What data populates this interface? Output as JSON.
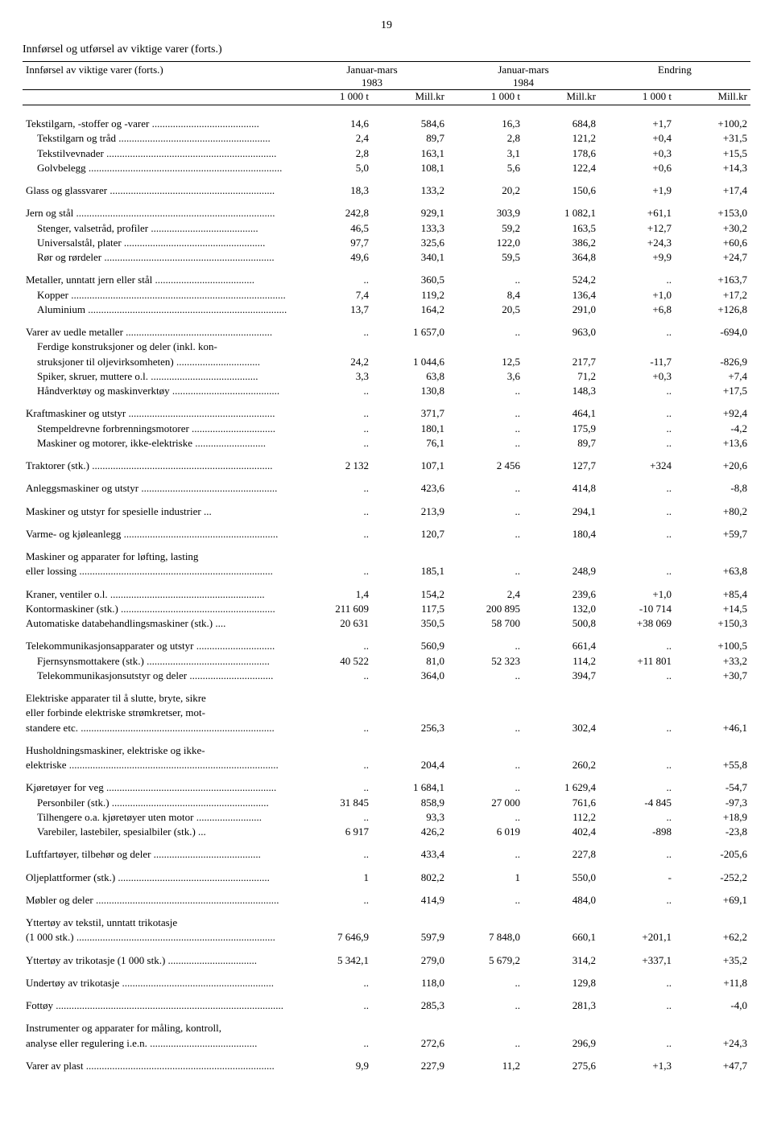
{
  "page_number": "19",
  "title": "Innførsel og utførsel av viktige varer (forts.)",
  "row_header_label": "Innførsel av viktige varer (forts.)",
  "period_headers": [
    "Januar-mars",
    "Januar-mars",
    "Endring"
  ],
  "year_headers": [
    "1983",
    "1984",
    ""
  ],
  "unit_headers": [
    "1 000 t",
    "Mill.kr",
    "1 000 t",
    "Mill.kr",
    "1 000 t",
    "Mill.kr"
  ],
  "rows": [
    {
      "label": "Tekstilgarn, -stoffer og -varer",
      "indent": 0,
      "gapBefore": true,
      "vals": [
        "14,6",
        "584,6",
        "16,3",
        "684,8",
        "+1,7",
        "+100,2"
      ]
    },
    {
      "label": "Tekstilgarn og tråd",
      "indent": 1,
      "vals": [
        "2,4",
        "89,7",
        "2,8",
        "121,2",
        "+0,4",
        "+31,5"
      ]
    },
    {
      "label": "Tekstilvevnader",
      "indent": 1,
      "vals": [
        "2,8",
        "163,1",
        "3,1",
        "178,6",
        "+0,3",
        "+15,5"
      ]
    },
    {
      "label": "Golvbelegg",
      "indent": 1,
      "vals": [
        "5,0",
        "108,1",
        "5,6",
        "122,4",
        "+0,6",
        "+14,3"
      ]
    },
    {
      "label": "Glass og glassvarer",
      "indent": 0,
      "gapBefore": true,
      "vals": [
        "18,3",
        "133,2",
        "20,2",
        "150,6",
        "+1,9",
        "+17,4"
      ]
    },
    {
      "label": "Jern og stål",
      "indent": 0,
      "gapBefore": true,
      "vals": [
        "242,8",
        "929,1",
        "303,9",
        "1 082,1",
        "+61,1",
        "+153,0"
      ]
    },
    {
      "label": "Stenger, valsetråd, profiler",
      "indent": 1,
      "vals": [
        "46,5",
        "133,3",
        "59,2",
        "163,5",
        "+12,7",
        "+30,2"
      ]
    },
    {
      "label": "Universalstål, plater",
      "indent": 1,
      "vals": [
        "97,7",
        "325,6",
        "122,0",
        "386,2",
        "+24,3",
        "+60,6"
      ]
    },
    {
      "label": "Rør og rørdeler",
      "indent": 1,
      "vals": [
        "49,6",
        "340,1",
        "59,5",
        "364,8",
        "+9,9",
        "+24,7"
      ]
    },
    {
      "label": "Metaller, unntatt jern eller stål",
      "indent": 0,
      "gapBefore": true,
      "vals": [
        "..",
        "360,5",
        "..",
        "524,2",
        "..",
        "+163,7"
      ]
    },
    {
      "label": "Kopper",
      "indent": 1,
      "vals": [
        "7,4",
        "119,2",
        "8,4",
        "136,4",
        "+1,0",
        "+17,2"
      ]
    },
    {
      "label": "Aluminium",
      "indent": 1,
      "vals": [
        "13,7",
        "164,2",
        "20,5",
        "291,0",
        "+6,8",
        "+126,8"
      ]
    },
    {
      "label": "Varer av uedle metaller",
      "indent": 0,
      "gapBefore": true,
      "vals": [
        "..",
        "1 657,0",
        "..",
        "963,0",
        "..",
        "-694,0"
      ]
    },
    {
      "label": "Ferdige konstruksjoner og deler (inkl. kon-",
      "noLeaders": true,
      "indent": 1,
      "vals": [
        "",
        "",
        "",
        "",
        "",
        ""
      ]
    },
    {
      "label": "struksjoner til oljevirksomheten)",
      "indent": 1,
      "vals": [
        "24,2",
        "1 044,6",
        "12,5",
        "217,7",
        "-11,7",
        "-826,9"
      ]
    },
    {
      "label": "Spiker, skruer, muttere o.l.",
      "indent": 1,
      "vals": [
        "3,3",
        "63,8",
        "3,6",
        "71,2",
        "+0,3",
        "+7,4"
      ]
    },
    {
      "label": "Håndverktøy og maskinverktøy",
      "indent": 1,
      "vals": [
        "..",
        "130,8",
        "..",
        "148,3",
        "..",
        "+17,5"
      ]
    },
    {
      "label": "Kraftmaskiner og utstyr",
      "indent": 0,
      "gapBefore": true,
      "vals": [
        "..",
        "371,7",
        "..",
        "464,1",
        "..",
        "+92,4"
      ]
    },
    {
      "label": "Stempeldrevne forbrenningsmotorer",
      "indent": 1,
      "vals": [
        "..",
        "180,1",
        "..",
        "175,9",
        "..",
        "-4,2"
      ]
    },
    {
      "label": "Maskiner og motorer, ikke-elektriske",
      "indent": 1,
      "vals": [
        "..",
        "76,1",
        "..",
        "89,7",
        "..",
        "+13,6"
      ]
    },
    {
      "label": "Traktorer (stk.)",
      "indent": 0,
      "gapBefore": true,
      "vals": [
        "2 132",
        "107,1",
        "2 456",
        "127,7",
        "+324",
        "+20,6"
      ]
    },
    {
      "label": "Anleggsmaskiner og utstyr",
      "indent": 0,
      "gapBefore": true,
      "vals": [
        "..",
        "423,6",
        "..",
        "414,8",
        "..",
        "-8,8"
      ]
    },
    {
      "label": "Maskiner og utstyr for spesielle industrier",
      "indent": 0,
      "gapBefore": true,
      "leadersText": "...",
      "vals": [
        "..",
        "213,9",
        "..",
        "294,1",
        "..",
        "+80,2"
      ]
    },
    {
      "label": "Varme- og kjøleanlegg",
      "indent": 0,
      "gapBefore": true,
      "vals": [
        "..",
        "120,7",
        "..",
        "180,4",
        "..",
        "+59,7"
      ]
    },
    {
      "label": "Maskiner og apparater for løfting, lasting",
      "noLeaders": true,
      "indent": 0,
      "gapBefore": true,
      "vals": [
        "",
        "",
        "",
        "",
        "",
        ""
      ]
    },
    {
      "label": "eller lossing",
      "indent": 0,
      "vals": [
        "..",
        "185,1",
        "..",
        "248,9",
        "..",
        "+63,8"
      ]
    },
    {
      "label": "Kraner, ventiler o.l.",
      "indent": 0,
      "gapBefore": true,
      "vals": [
        "1,4",
        "154,2",
        "2,4",
        "239,6",
        "+1,0",
        "+85,4"
      ]
    },
    {
      "label": "Kontormaskiner (stk.)",
      "indent": 0,
      "vals": [
        "211 609",
        "117,5",
        "200 895",
        "132,0",
        "-10 714",
        "+14,5"
      ]
    },
    {
      "label": "Automatiske databehandlingsmaskiner (stk.)",
      "indent": 0,
      "leadersText": "....",
      "vals": [
        "20 631",
        "350,5",
        "58 700",
        "500,8",
        "+38 069",
        "+150,3"
      ]
    },
    {
      "label": "Telekommunikasjonsapparater og utstyr",
      "indent": 0,
      "gapBefore": true,
      "vals": [
        "..",
        "560,9",
        "..",
        "661,4",
        "..",
        "+100,5"
      ]
    },
    {
      "label": "Fjernsynsmottakere (stk.)",
      "indent": 1,
      "vals": [
        "40 522",
        "81,0",
        "52 323",
        "114,2",
        "+11 801",
        "+33,2"
      ]
    },
    {
      "label": "Telekommunikasjonsutstyr og deler",
      "indent": 1,
      "vals": [
        "..",
        "364,0",
        "..",
        "394,7",
        "..",
        "+30,7"
      ]
    },
    {
      "label": "Elektriske apparater til å slutte, bryte, sikre",
      "noLeaders": true,
      "indent": 0,
      "gapBefore": true,
      "vals": [
        "",
        "",
        "",
        "",
        "",
        ""
      ]
    },
    {
      "label": "eller forbinde elektriske strømkretser, mot-",
      "noLeaders": true,
      "indent": 0,
      "vals": [
        "",
        "",
        "",
        "",
        "",
        ""
      ]
    },
    {
      "label": "standere etc.",
      "indent": 0,
      "vals": [
        "..",
        "256,3",
        "..",
        "302,4",
        "..",
        "+46,1"
      ]
    },
    {
      "label": "Husholdningsmaskiner, elektriske og ikke-",
      "noLeaders": true,
      "indent": 0,
      "gapBefore": true,
      "vals": [
        "",
        "",
        "",
        "",
        "",
        ""
      ]
    },
    {
      "label": "elektriske",
      "indent": 0,
      "vals": [
        "..",
        "204,4",
        "..",
        "260,2",
        "..",
        "+55,8"
      ]
    },
    {
      "label": "Kjøretøyer for veg",
      "indent": 0,
      "gapBefore": true,
      "vals": [
        "..",
        "1 684,1",
        "..",
        "1 629,4",
        "..",
        "-54,7"
      ]
    },
    {
      "label": "Personbiler (stk.)",
      "indent": 1,
      "vals": [
        "31 845",
        "858,9",
        "27 000",
        "761,6",
        "-4 845",
        "-97,3"
      ]
    },
    {
      "label": "Tilhengere o.a. kjøretøyer uten motor",
      "indent": 1,
      "vals": [
        "..",
        "93,3",
        "..",
        "112,2",
        "..",
        "+18,9"
      ]
    },
    {
      "label": "Varebiler, lastebiler, spesialbiler (stk.)",
      "indent": 1,
      "leadersText": "...",
      "vals": [
        "6 917",
        "426,2",
        "6 019",
        "402,4",
        "-898",
        "-23,8"
      ]
    },
    {
      "label": "Luftfartøyer, tilbehør og deler",
      "indent": 0,
      "gapBefore": true,
      "vals": [
        "..",
        "433,4",
        "..",
        "227,8",
        "..",
        "-205,6"
      ]
    },
    {
      "label": "Oljeplattformer (stk.)",
      "indent": 0,
      "gapBefore": true,
      "vals": [
        "1",
        "802,2",
        "1",
        "550,0",
        "-",
        "-252,2"
      ]
    },
    {
      "label": "Møbler og deler",
      "indent": 0,
      "gapBefore": true,
      "vals": [
        "..",
        "414,9",
        "..",
        "484,0",
        "..",
        "+69,1"
      ]
    },
    {
      "label": "Yttertøy av tekstil, unntatt trikotasje",
      "noLeaders": true,
      "indent": 0,
      "gapBefore": true,
      "vals": [
        "",
        "",
        "",
        "",
        "",
        ""
      ]
    },
    {
      "label": "(1 000 stk.)",
      "indent": 0,
      "vals": [
        "7 646,9",
        "597,9",
        "7 848,0",
        "660,1",
        "+201,1",
        "+62,2"
      ]
    },
    {
      "label": "Yttertøy av trikotasje (1 000 stk.)",
      "indent": 0,
      "gapBefore": true,
      "vals": [
        "5 342,1",
        "279,0",
        "5 679,2",
        "314,2",
        "+337,1",
        "+35,2"
      ]
    },
    {
      "label": "Undertøy av trikotasje",
      "indent": 0,
      "gapBefore": true,
      "vals": [
        "..",
        "118,0",
        "..",
        "129,8",
        "..",
        "+11,8"
      ]
    },
    {
      "label": "Fottøy",
      "indent": 0,
      "gapBefore": true,
      "vals": [
        "..",
        "285,3",
        "..",
        "281,3",
        "..",
        "-4,0"
      ]
    },
    {
      "label": "Instrumenter og apparater for måling, kontroll,",
      "noLeaders": true,
      "indent": 0,
      "gapBefore": true,
      "vals": [
        "",
        "",
        "",
        "",
        "",
        ""
      ]
    },
    {
      "label": "analyse eller regulering i.e.n.",
      "indent": 0,
      "vals": [
        "..",
        "272,6",
        "..",
        "296,9",
        "..",
        "+24,3"
      ]
    },
    {
      "label": "Varer av plast",
      "indent": 0,
      "gapBefore": true,
      "vals": [
        "9,9",
        "227,9",
        "11,2",
        "275,6",
        "+1,3",
        "+47,7"
      ]
    }
  ]
}
